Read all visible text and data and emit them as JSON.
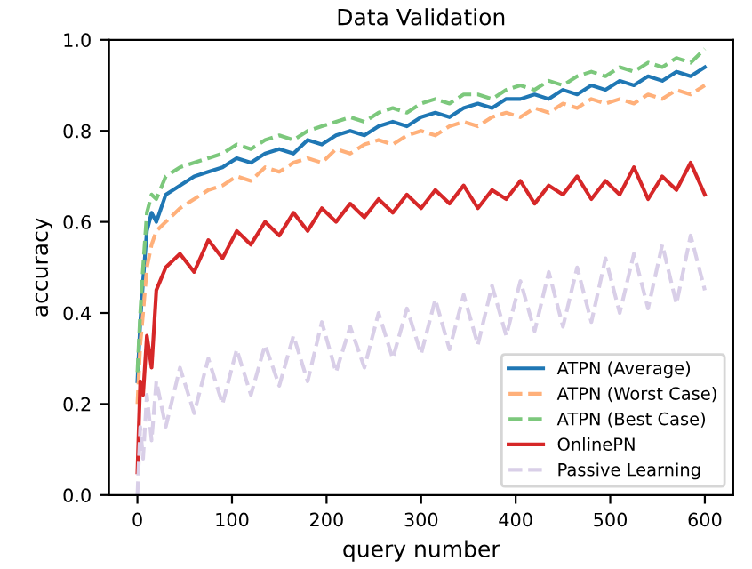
{
  "chart_data": {
    "type": "line",
    "title": "Data Validation",
    "xlabel": "query number",
    "ylabel": "accuracy",
    "x": [
      0,
      3,
      6,
      10,
      15,
      20,
      30,
      45,
      60,
      75,
      90,
      105,
      120,
      135,
      150,
      165,
      180,
      195,
      210,
      225,
      240,
      255,
      270,
      285,
      300,
      315,
      330,
      345,
      360,
      375,
      390,
      405,
      420,
      435,
      450,
      465,
      480,
      495,
      510,
      525,
      540,
      555,
      570,
      585,
      600
    ],
    "series": [
      {
        "name": "ATPN (Average)",
        "color": "#1f77b4",
        "line_style": "solid",
        "values": [
          0.25,
          0.38,
          0.47,
          0.58,
          0.62,
          0.6,
          0.66,
          0.68,
          0.7,
          0.71,
          0.72,
          0.74,
          0.73,
          0.75,
          0.76,
          0.75,
          0.78,
          0.77,
          0.79,
          0.8,
          0.79,
          0.81,
          0.82,
          0.81,
          0.83,
          0.84,
          0.83,
          0.85,
          0.86,
          0.85,
          0.87,
          0.87,
          0.88,
          0.87,
          0.89,
          0.88,
          0.9,
          0.89,
          0.91,
          0.9,
          0.92,
          0.91,
          0.93,
          0.92,
          0.94
        ]
      },
      {
        "name": "ATPN (Worst Case)",
        "color": "#ffb07a",
        "line_style": "dashed",
        "values": [
          0.2,
          0.33,
          0.4,
          0.5,
          0.55,
          0.58,
          0.6,
          0.63,
          0.65,
          0.67,
          0.68,
          0.7,
          0.69,
          0.72,
          0.71,
          0.73,
          0.74,
          0.73,
          0.76,
          0.75,
          0.77,
          0.78,
          0.77,
          0.79,
          0.8,
          0.79,
          0.81,
          0.82,
          0.81,
          0.83,
          0.84,
          0.83,
          0.85,
          0.84,
          0.86,
          0.85,
          0.87,
          0.86,
          0.87,
          0.86,
          0.88,
          0.87,
          0.89,
          0.88,
          0.9
        ]
      },
      {
        "name": "ATPN (Best Case)",
        "color": "#7cc87c",
        "line_style": "dashed",
        "values": [
          0.27,
          0.4,
          0.5,
          0.62,
          0.66,
          0.65,
          0.7,
          0.72,
          0.73,
          0.74,
          0.75,
          0.77,
          0.76,
          0.78,
          0.79,
          0.78,
          0.8,
          0.81,
          0.82,
          0.83,
          0.82,
          0.84,
          0.85,
          0.84,
          0.86,
          0.87,
          0.86,
          0.88,
          0.88,
          0.87,
          0.89,
          0.9,
          0.89,
          0.91,
          0.9,
          0.92,
          0.93,
          0.92,
          0.94,
          0.93,
          0.95,
          0.94,
          0.96,
          0.95,
          0.98
        ]
      },
      {
        "name": "OnlinePN",
        "color": "#d62728",
        "line_style": "solid",
        "values": [
          0.05,
          0.25,
          0.22,
          0.35,
          0.28,
          0.45,
          0.5,
          0.53,
          0.49,
          0.56,
          0.52,
          0.58,
          0.55,
          0.6,
          0.57,
          0.62,
          0.58,
          0.63,
          0.6,
          0.64,
          0.61,
          0.65,
          0.62,
          0.66,
          0.63,
          0.67,
          0.64,
          0.68,
          0.63,
          0.67,
          0.65,
          0.69,
          0.64,
          0.68,
          0.66,
          0.7,
          0.65,
          0.69,
          0.66,
          0.72,
          0.65,
          0.7,
          0.67,
          0.73,
          0.66
        ]
      },
      {
        "name": "Passive Learning",
        "color": "#d9cfe8",
        "line_style": "dashed",
        "values": [
          0.0,
          0.15,
          0.08,
          0.22,
          0.12,
          0.25,
          0.15,
          0.28,
          0.18,
          0.3,
          0.2,
          0.32,
          0.22,
          0.33,
          0.24,
          0.35,
          0.25,
          0.38,
          0.27,
          0.37,
          0.28,
          0.4,
          0.3,
          0.41,
          0.31,
          0.43,
          0.32,
          0.44,
          0.33,
          0.46,
          0.35,
          0.47,
          0.36,
          0.49,
          0.37,
          0.5,
          0.38,
          0.52,
          0.4,
          0.53,
          0.41,
          0.55,
          0.42,
          0.57,
          0.45
        ]
      }
    ],
    "xlim": [
      -30,
      630
    ],
    "ylim": [
      0,
      1
    ],
    "xticks": [
      0,
      100,
      200,
      300,
      400,
      500,
      600
    ],
    "yticks": [
      {
        "value": 0,
        "label": "0.0"
      },
      {
        "value": 0.2,
        "label": "0.2"
      },
      {
        "value": 0.4,
        "label": "0.4"
      },
      {
        "value": 0.6,
        "label": "0.6"
      },
      {
        "value": 0.8,
        "label": "0.8"
      },
      {
        "value": 1,
        "label": "1.0"
      }
    ],
    "legend": "bottom right"
  }
}
